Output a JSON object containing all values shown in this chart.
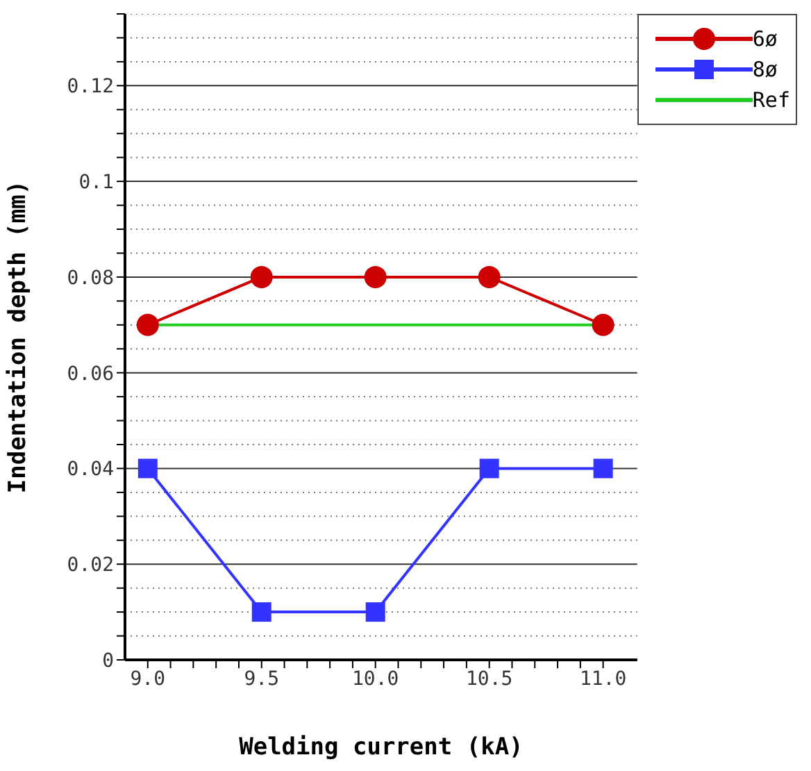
{
  "chart_data": {
    "type": "line",
    "xlabel": "Welding current (kA)",
    "ylabel": "Indentation depth (mm)",
    "x": [
      9.0,
      9.5,
      10.0,
      10.5,
      11.0
    ],
    "series": [
      {
        "name": "6ø",
        "color": "#cc0000",
        "marker": "circle",
        "values": [
          0.07,
          0.08,
          0.08,
          0.08,
          0.07
        ]
      },
      {
        "name": "8ø",
        "color": "#3333ff",
        "marker": "square",
        "values": [
          0.04,
          0.01,
          0.01,
          0.04,
          0.04
        ]
      },
      {
        "name": "Ref",
        "color": "#22cc22",
        "marker": "none",
        "values": [
          0.07,
          0.07,
          0.07,
          0.07,
          0.07
        ]
      }
    ],
    "xlim": [
      8.9,
      11.15
    ],
    "xticks": [
      {
        "value": 9,
        "label": "9.0"
      },
      {
        "value": 9.1,
        "label": null
      },
      {
        "value": 9.2,
        "label": null
      },
      {
        "value": 9.3,
        "label": null
      },
      {
        "value": 9.4,
        "label": null
      },
      {
        "value": 9.5,
        "label": "9.5"
      },
      {
        "value": 9.6,
        "label": null
      },
      {
        "value": 9.7,
        "label": null
      },
      {
        "value": 9.8,
        "label": null
      },
      {
        "value": 9.9,
        "label": null
      },
      {
        "value": 10,
        "label": "10.0"
      },
      {
        "value": 10.1,
        "label": null
      },
      {
        "value": 10.2,
        "label": null
      },
      {
        "value": 10.3,
        "label": null
      },
      {
        "value": 10.4,
        "label": null
      },
      {
        "value": 10.5,
        "label": "10.5"
      },
      {
        "value": 10.6,
        "label": null
      },
      {
        "value": 10.7,
        "label": null
      },
      {
        "value": 10.8,
        "label": null
      },
      {
        "value": 10.9,
        "label": null
      },
      {
        "value": 11,
        "label": "11.0"
      }
    ],
    "ylim": [
      0,
      0.135
    ],
    "yticks": [
      0,
      {
        "value": 0.005,
        "label": null
      },
      {
        "value": 0.01,
        "label": null
      },
      {
        "value": 0.015,
        "label": null
      },
      0.02,
      {
        "value": 0.025,
        "label": null
      },
      {
        "value": 0.03,
        "label": null
      },
      {
        "value": 0.035,
        "label": null
      },
      0.04,
      {
        "value": 0.045,
        "label": null
      },
      {
        "value": 0.05,
        "label": null
      },
      {
        "value": 0.055,
        "label": null
      },
      0.06,
      {
        "value": 0.065,
        "label": null
      },
      {
        "value": 0.07,
        "label": null
      },
      {
        "value": 0.075,
        "label": null
      },
      0.08,
      {
        "value": 0.085,
        "label": null
      },
      {
        "value": 0.09,
        "label": null
      },
      {
        "value": 0.095,
        "label": null
      },
      0.1,
      {
        "value": 0.105,
        "label": null
      },
      {
        "value": 0.11,
        "label": null
      },
      {
        "value": 0.115,
        "label": null
      },
      0.12,
      {
        "value": 0.125,
        "label": null
      },
      {
        "value": 0.13,
        "label": null
      },
      {
        "value": 0.135,
        "label": null
      }
    ],
    "grid": "y",
    "legend": "top right"
  }
}
